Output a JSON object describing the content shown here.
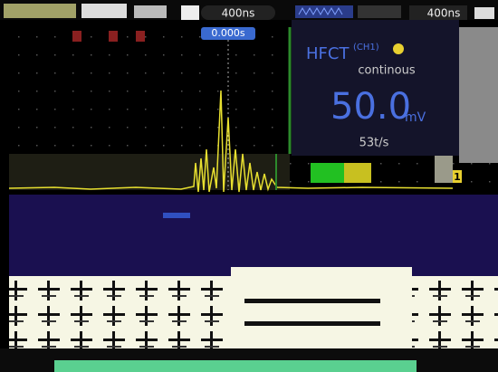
{
  "toolbar": {
    "timebase_left": "400ns",
    "timebase_right": "400ns"
  },
  "trigger_position": "0.000s",
  "panel": {
    "sensor": "HFCT",
    "channel": "(CH1)",
    "mode": "continous",
    "amplitude": "50.0",
    "unit": "mV",
    "rate": "53t/s"
  },
  "channel_marker": "1"
}
